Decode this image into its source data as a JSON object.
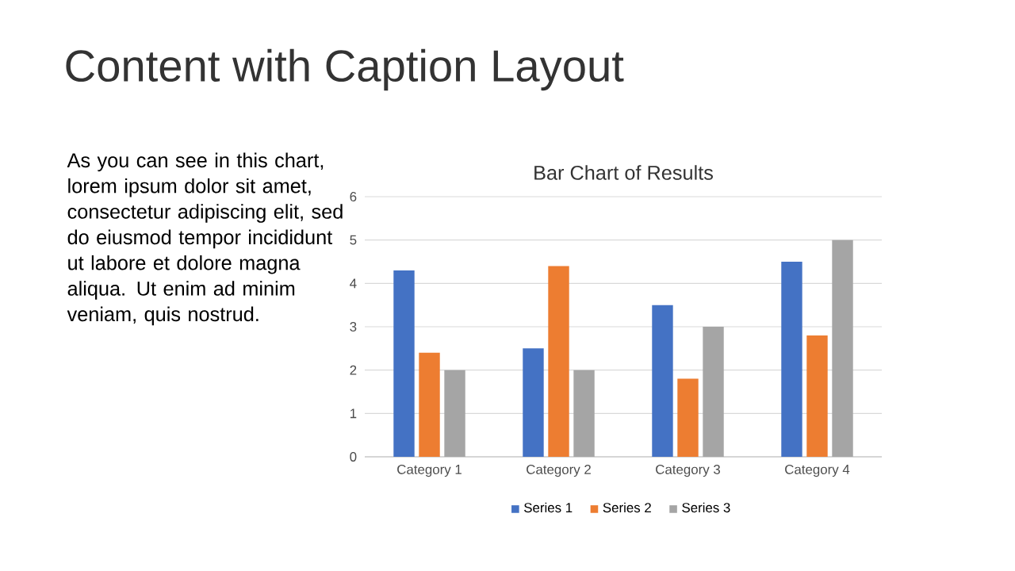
{
  "chart_data": {
    "type": "bar",
    "title": "Bar Chart of Results",
    "categories": [
      "Category 1",
      "Category 2",
      "Category 3",
      "Category 4"
    ],
    "series": [
      {
        "name": "Series 1",
        "color": "#4472c4",
        "values": [
          4.3,
          2.5,
          3.5,
          4.5
        ]
      },
      {
        "name": "Series 2",
        "color": "#ed7d31",
        "values": [
          2.4,
          4.4,
          1.8,
          2.8
        ]
      },
      {
        "name": "Series 3",
        "color": "#a5a5a5",
        "values": [
          2,
          2,
          3,
          5
        ]
      }
    ],
    "ylim": [
      0,
      6
    ],
    "yticks": [
      0,
      1,
      2,
      3,
      4,
      5,
      6
    ],
    "grid": "y",
    "legend": "bottom",
    "annotations": [
      "Content with Caption Layout",
      "As you can see in this chart, lorem ipsum dolor sit amet, consectetur adipiscing elit, sed do eiusmod tempor incididunt ut labore et dolore magna aliqua. Ut enim ad minim veniam, quis nostrud."
    ]
  }
}
